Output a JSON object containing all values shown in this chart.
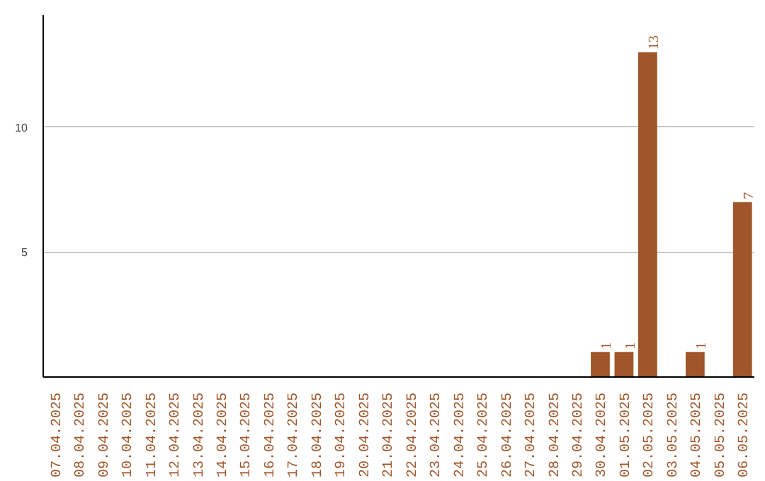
{
  "chart_data": {
    "type": "bar",
    "categories": [
      "07.04.2025",
      "08.04.2025",
      "09.04.2025",
      "10.04.2025",
      "11.04.2025",
      "12.04.2025",
      "13.04.2025",
      "14.04.2025",
      "15.04.2025",
      "16.04.2025",
      "17.04.2025",
      "18.04.2025",
      "19.04.2025",
      "20.04.2025",
      "21.04.2025",
      "22.04.2025",
      "23.04.2025",
      "24.04.2025",
      "25.04.2025",
      "26.04.2025",
      "27.04.2025",
      "28.04.2025",
      "29.04.2025",
      "30.04.2025",
      "01.05.2025",
      "02.05.2025",
      "03.05.2025",
      "04.05.2025",
      "05.05.2025",
      "06.05.2025"
    ],
    "values": [
      0,
      0,
      0,
      0,
      0,
      0,
      0,
      0,
      0,
      0,
      0,
      0,
      0,
      0,
      0,
      0,
      0,
      0,
      0,
      0,
      0,
      0,
      0,
      1,
      1,
      13,
      0,
      1,
      0,
      7
    ],
    "value_labels": [
      null,
      null,
      null,
      null,
      null,
      null,
      null,
      null,
      null,
      null,
      null,
      null,
      null,
      null,
      null,
      null,
      null,
      null,
      null,
      null,
      null,
      null,
      null,
      "1",
      "1",
      "13",
      null,
      "1",
      null,
      "7"
    ],
    "color": "#a0562a",
    "ylim": [
      0,
      14.5
    ],
    "yticks": [
      5,
      10
    ],
    "grid": "y"
  }
}
